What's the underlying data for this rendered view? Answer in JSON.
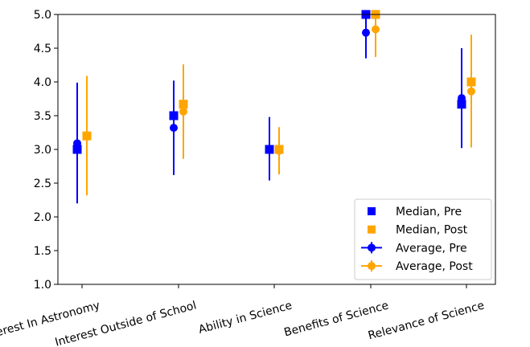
{
  "chart_data": {
    "type": "scatter",
    "title": "",
    "xlabel": "",
    "ylabel": "",
    "categories": [
      "Interest In Astronomy",
      "Interest Outside of School",
      "Ability in Science",
      "Benefits of Science",
      "Relevance of Science"
    ],
    "ylim": [
      1.0,
      5.0
    ],
    "yticks": [
      "1.0",
      "1.5",
      "2.0",
      "2.5",
      "3.0",
      "3.5",
      "4.0",
      "4.5",
      "5.0"
    ],
    "grid": false,
    "legend_position": "lower-right",
    "series": [
      {
        "name": "Median, Pre",
        "kind": "median",
        "marker": "square",
        "color": "#0000ff",
        "values": [
          3.0,
          3.5,
          3.0,
          5.0,
          3.67
        ]
      },
      {
        "name": "Median, Post",
        "kind": "median",
        "marker": "square",
        "color": "#ffa500",
        "values": [
          3.2,
          3.67,
          3.0,
          5.0,
          4.0
        ]
      },
      {
        "name": "Average, Pre",
        "kind": "average",
        "marker": "circle",
        "color": "#0000ff",
        "values": [
          3.09,
          3.32,
          3.0,
          4.73,
          3.76
        ],
        "err_low": [
          2.2,
          2.62,
          2.54,
          4.35,
          3.02
        ],
        "err_high": [
          3.99,
          4.02,
          3.48,
          5.0,
          4.5
        ]
      },
      {
        "name": "Average, Post",
        "kind": "average",
        "marker": "circle",
        "color": "#ffa500",
        "values": [
          3.2,
          3.56,
          2.98,
          4.78,
          3.86
        ],
        "err_low": [
          2.32,
          2.86,
          2.63,
          4.37,
          3.03
        ],
        "err_high": [
          4.09,
          4.26,
          3.33,
          5.0,
          4.7
        ]
      }
    ]
  }
}
